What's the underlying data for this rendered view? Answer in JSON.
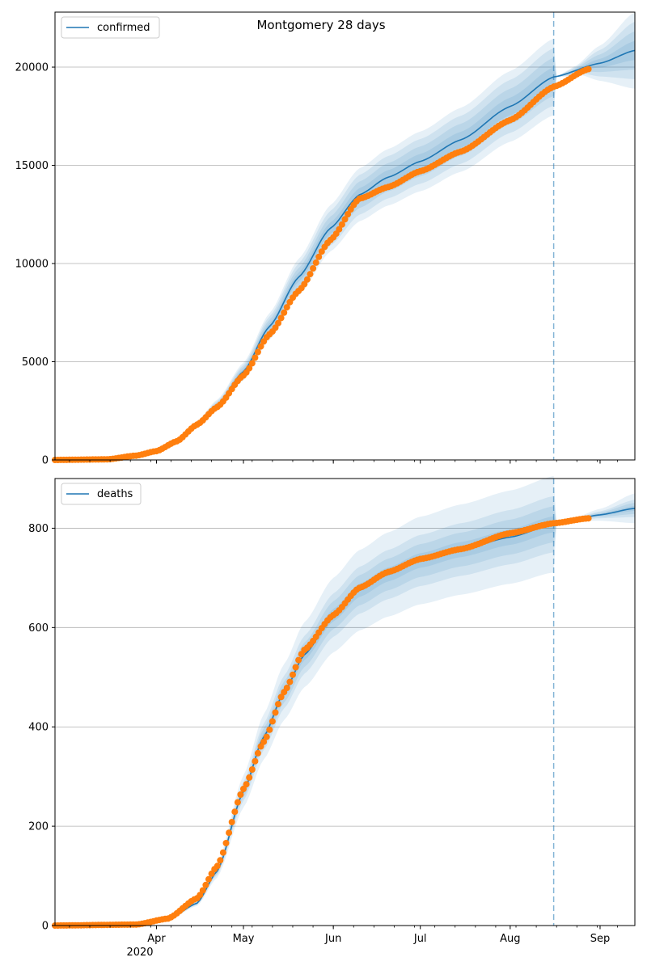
{
  "title": "Montgomery 28 days",
  "colors": {
    "model_line": "#1f77b4",
    "band": "#1f77b4",
    "observed": "#ff7f0e",
    "grid": "#b0b0b0",
    "cutoff": "#1f77b4"
  },
  "x_axis": {
    "start": "2020-02-26",
    "end": "2020-09-13",
    "month_ticks": [
      {
        "date": "2020-04-01",
        "label": "Apr"
      },
      {
        "date": "2020-05-01",
        "label": "May"
      },
      {
        "date": "2020-06-01",
        "label": "Jun"
      },
      {
        "date": "2020-07-01",
        "label": "Jul"
      },
      {
        "date": "2020-08-01",
        "label": "Aug"
      },
      {
        "date": "2020-09-01",
        "label": "Sep"
      }
    ],
    "year_label": "2020",
    "forecast_cutoff": "2020-08-16"
  },
  "chart_data": [
    {
      "type": "line",
      "name": "confirmed",
      "legend": "confirmed",
      "legend_position": "top-left",
      "ylim": [
        0,
        22800
      ],
      "yticks": [
        0,
        5000,
        10000,
        15000,
        20000
      ],
      "grid": "y",
      "model_knots": [
        [
          "2020-02-26",
          0
        ],
        [
          "2020-03-15",
          40
        ],
        [
          "2020-03-25",
          250
        ],
        [
          "2020-04-01",
          500
        ],
        [
          "2020-04-08",
          1000
        ],
        [
          "2020-04-15",
          1800
        ],
        [
          "2020-04-22",
          2800
        ],
        [
          "2020-05-01",
          4500
        ],
        [
          "2020-05-10",
          6800
        ],
        [
          "2020-05-20",
          9300
        ],
        [
          "2020-05-31",
          11800
        ],
        [
          "2020-06-10",
          13500
        ],
        [
          "2020-06-20",
          14400
        ],
        [
          "2020-07-01",
          15200
        ],
        [
          "2020-07-15",
          16300
        ],
        [
          "2020-08-01",
          18000
        ],
        [
          "2020-08-16",
          19500
        ],
        [
          "2020-09-01",
          20200
        ],
        [
          "2020-09-13",
          20850
        ]
      ],
      "band_halfwidth_fraction": [
        0.025,
        0.05,
        0.075,
        0.1
      ],
      "band_forecast_halfwidth": [
        [
          "2020-08-16",
          0
        ],
        [
          "2020-08-24",
          250
        ],
        [
          "2020-09-01",
          900
        ],
        [
          "2020-09-13",
          1950
        ]
      ],
      "observed_knots": [
        [
          "2020-02-26",
          0
        ],
        [
          "2020-03-15",
          30
        ],
        [
          "2020-03-25",
          220
        ],
        [
          "2020-04-01",
          450
        ],
        [
          "2020-04-08",
          950
        ],
        [
          "2020-04-15",
          1800
        ],
        [
          "2020-04-22",
          2700
        ],
        [
          "2020-05-01",
          4300
        ],
        [
          "2020-05-10",
          6400
        ],
        [
          "2020-05-20",
          8600
        ],
        [
          "2020-05-31",
          11200
        ],
        [
          "2020-06-10",
          13300
        ],
        [
          "2020-06-20",
          13900
        ],
        [
          "2020-07-01",
          14700
        ],
        [
          "2020-07-15",
          15700
        ],
        [
          "2020-08-01",
          17300
        ],
        [
          "2020-08-16",
          19000
        ],
        [
          "2020-08-28",
          19900
        ]
      ]
    },
    {
      "type": "line",
      "name": "deaths",
      "legend": "deaths",
      "legend_position": "top-left",
      "ylim": [
        0,
        900
      ],
      "yticks": [
        0,
        200,
        400,
        600,
        800
      ],
      "grid": "y",
      "model_knots": [
        [
          "2020-02-26",
          0
        ],
        [
          "2020-03-25",
          2
        ],
        [
          "2020-04-05",
          12
        ],
        [
          "2020-04-15",
          45
        ],
        [
          "2020-04-22",
          110
        ],
        [
          "2020-05-01",
          270
        ],
        [
          "2020-05-08",
          380
        ],
        [
          "2020-05-15",
          470
        ],
        [
          "2020-05-22",
          545
        ],
        [
          "2020-06-01",
          625
        ],
        [
          "2020-06-10",
          675
        ],
        [
          "2020-06-20",
          707
        ],
        [
          "2020-07-01",
          735
        ],
        [
          "2020-07-15",
          757
        ],
        [
          "2020-08-01",
          782
        ],
        [
          "2020-08-16",
          808
        ],
        [
          "2020-09-01",
          827
        ],
        [
          "2020-09-13",
          840
        ]
      ],
      "band_halfwidth_fraction": [
        0.02,
        0.045,
        0.07,
        0.12
      ],
      "band_forecast_halfwidth": [
        [
          "2020-08-16",
          0
        ],
        [
          "2020-08-24",
          4
        ],
        [
          "2020-09-01",
          12
        ],
        [
          "2020-09-13",
          30
        ]
      ],
      "observed_knots": [
        [
          "2020-02-26",
          0
        ],
        [
          "2020-03-25",
          2
        ],
        [
          "2020-04-05",
          14
        ],
        [
          "2020-04-15",
          55
        ],
        [
          "2020-04-22",
          120
        ],
        [
          "2020-05-01",
          275
        ],
        [
          "2020-05-08",
          370
        ],
        [
          "2020-05-15",
          470
        ],
        [
          "2020-05-22",
          555
        ],
        [
          "2020-06-01",
          625
        ],
        [
          "2020-06-10",
          680
        ],
        [
          "2020-06-20",
          712
        ],
        [
          "2020-07-01",
          738
        ],
        [
          "2020-07-15",
          758
        ],
        [
          "2020-08-01",
          790
        ],
        [
          "2020-08-16",
          810
        ],
        [
          "2020-08-28",
          820
        ]
      ]
    }
  ]
}
